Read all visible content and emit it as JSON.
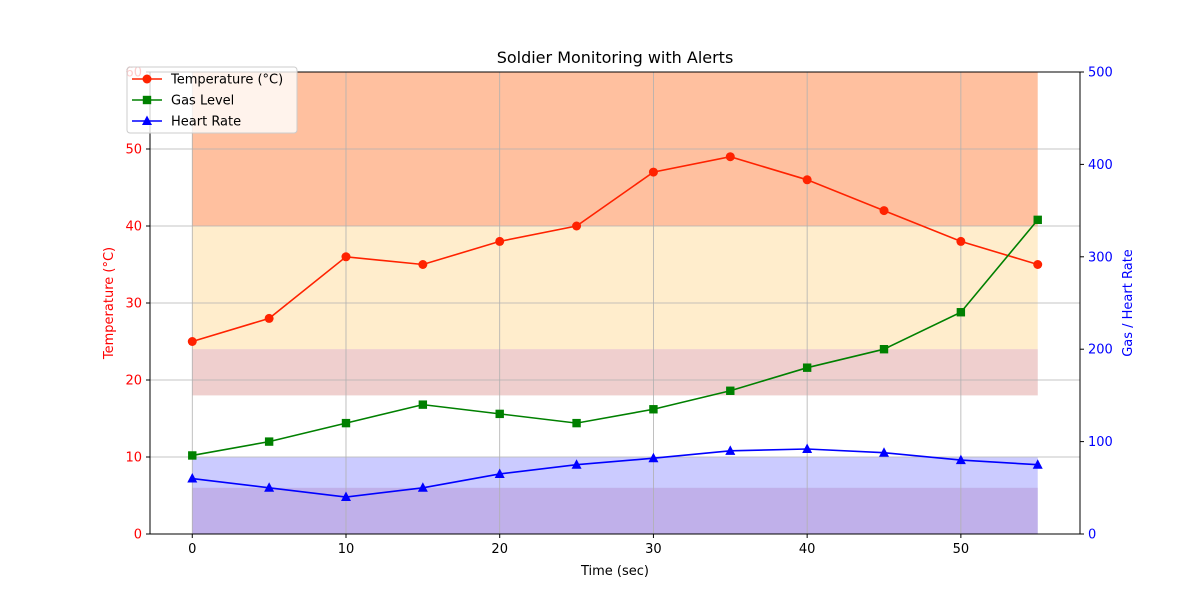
{
  "chart_data": {
    "type": "line",
    "title": "Soldier Monitoring with Alerts",
    "xlabel": "Time (sec)",
    "ylabel_left": "Temperature (°C)",
    "ylabel_right": "Gas / Heart Rate",
    "xlim": [
      -2.75,
      57.75
    ],
    "ylim_left": [
      0,
      60
    ],
    "ylim_right": [
      0,
      500
    ],
    "x_ticks": [
      0,
      10,
      20,
      30,
      40,
      50
    ],
    "y_ticks_left": [
      0,
      10,
      20,
      30,
      40,
      50,
      60
    ],
    "y_ticks_right": [
      0,
      100,
      200,
      300,
      400,
      500
    ],
    "grid": true,
    "legend_position": "upper-left",
    "x": [
      0,
      5,
      10,
      15,
      20,
      25,
      30,
      35,
      40,
      45,
      50,
      55
    ],
    "series": [
      {
        "name": "Temperature (°C)",
        "axis": "left",
        "color": "#ff2200",
        "marker": "circle",
        "values": [
          25,
          28,
          36,
          35,
          38,
          40,
          47,
          49,
          46,
          42,
          38,
          35
        ]
      },
      {
        "name": "Gas Level",
        "axis": "right",
        "color": "#008000",
        "marker": "square",
        "values": [
          85,
          100,
          120,
          140,
          130,
          120,
          135,
          155,
          180,
          200,
          240,
          340
        ]
      },
      {
        "name": "Heart Rate",
        "axis": "right",
        "color": "#0000ff",
        "marker": "triangle",
        "values": [
          60,
          50,
          40,
          50,
          65,
          75,
          82,
          90,
          92,
          88,
          80,
          75
        ]
      }
    ],
    "alert_bands": [
      {
        "axis": "left",
        "from": 40,
        "to": 60,
        "color": "#ff8c50",
        "opacity": 0.55
      },
      {
        "axis": "left",
        "from": 24,
        "to": 40,
        "color": "#ffd27f",
        "opacity": 0.4
      },
      {
        "axis": "right",
        "from": 150,
        "to": 200,
        "color": "#d6a6d8",
        "opacity": 0.3
      },
      {
        "axis": "left",
        "from": 18,
        "to": 24,
        "color": "#e8a98a",
        "opacity": 0.35
      },
      {
        "axis": "right",
        "from": 0,
        "to": 83,
        "color": "#8c8cff",
        "opacity": 0.45
      },
      {
        "axis": "left",
        "from": 0,
        "to": 6,
        "color": "#b89ad8",
        "opacity": 0.55
      }
    ],
    "band_x_range": [
      0,
      55
    ]
  }
}
